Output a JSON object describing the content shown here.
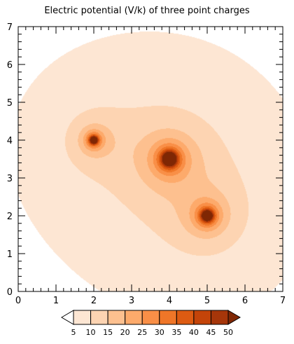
{
  "chart_data": {
    "type": "heatmap",
    "title": "Electric potential (V/k) of three point charges",
    "xlabel": "",
    "ylabel": "",
    "xlim": [
      0,
      7
    ],
    "ylim": [
      0,
      7
    ],
    "xticks": [
      0,
      1,
      2,
      3,
      4,
      5,
      6,
      7
    ],
    "yticks": [
      0,
      1,
      2,
      3,
      4,
      5,
      6,
      7
    ],
    "charges": [
      {
        "x": 2,
        "y": 4,
        "strength": 1
      },
      {
        "x": 4,
        "y": 3.5,
        "strength": 2
      },
      {
        "x": 5,
        "y": 2,
        "strength": 1.5
      }
    ],
    "contour_levels": [
      5,
      10,
      15,
      20,
      25,
      30,
      35,
      40,
      45,
      50
    ],
    "colorbar": {
      "ticks": [
        5,
        10,
        15,
        20,
        25,
        30,
        35,
        40,
        45,
        50
      ],
      "colors": [
        "#ffffff",
        "#fde6d3",
        "#fdd4b2",
        "#fdc08f",
        "#fdaa6b",
        "#f98f47",
        "#ef7628",
        "#dd5b12",
        "#c44409",
        "#a6360a",
        "#7f2704"
      ]
    }
  }
}
